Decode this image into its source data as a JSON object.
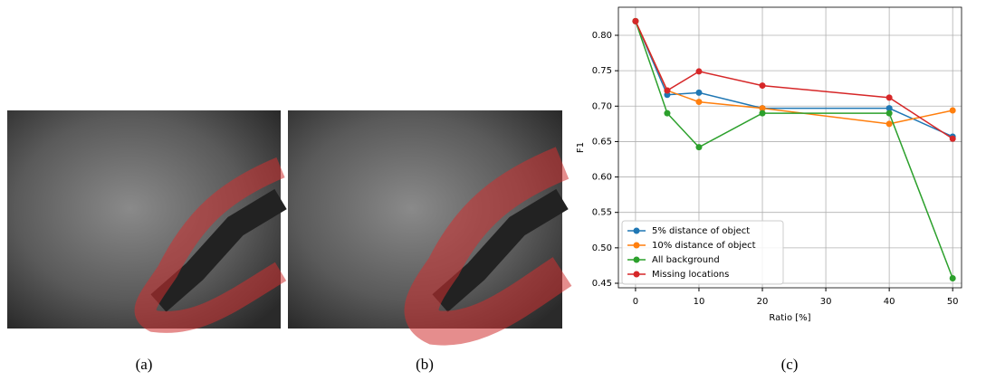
{
  "captions": [
    "(a)",
    "(b)",
    "(c)"
  ],
  "chart_data": {
    "type": "line",
    "xlabel": "Ratio [%]",
    "ylabel": "F1",
    "x": [
      0,
      5,
      10,
      20,
      40,
      50
    ],
    "series": [
      {
        "name": "5% distance of object",
        "color": "#1f77b4",
        "values": [
          0.82,
          0.716,
          0.719,
          0.697,
          0.697,
          0.657
        ]
      },
      {
        "name": "10% distance of object",
        "color": "#ff7f0e",
        "values": [
          0.82,
          0.722,
          0.706,
          0.697,
          0.675,
          0.694
        ]
      },
      {
        "name": "All background",
        "color": "#2ca02c",
        "values": [
          0.82,
          0.69,
          0.642,
          0.69,
          0.69,
          0.457
        ]
      },
      {
        "name": "Missing locations",
        "color": "#d62728",
        "values": [
          0.82,
          0.722,
          0.749,
          0.729,
          0.712,
          0.654
        ]
      }
    ],
    "xlim": [
      -2.7,
      51.4
    ],
    "ylim": [
      0.4436,
      0.8396
    ],
    "xticks": [
      0,
      10,
      20,
      30,
      40,
      50
    ],
    "yticks": [
      {
        "value": 0.45,
        "label": "0.45"
      },
      {
        "value": 0.5,
        "label": "0.50"
      },
      {
        "value": 0.55,
        "label": "0.55"
      },
      {
        "value": 0.6,
        "label": "0.60"
      },
      {
        "value": 0.65,
        "label": "0.65"
      },
      {
        "value": 0.7,
        "label": "0.70"
      },
      {
        "value": 0.75,
        "label": "0.75"
      },
      {
        "value": 0.8,
        "label": "0.80"
      }
    ],
    "grid": true,
    "legend": "lower left"
  }
}
